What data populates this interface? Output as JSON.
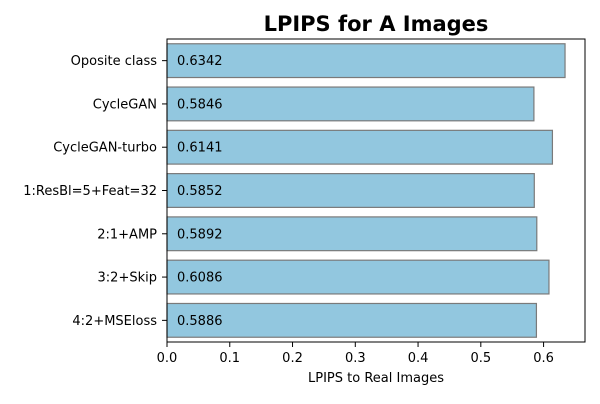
{
  "chart_data": {
    "type": "bar",
    "orientation": "horizontal",
    "title": "LPIPS for A Images",
    "xlabel": "LPIPS to Real Images",
    "ylabel": "",
    "categories": [
      "Oposite class",
      "CycleGAN",
      "CycleGAN-turbo",
      "1:ResBl=5+Feat=32",
      "2:1+AMP",
      "3:2+Skip",
      "4:2+MSEloss"
    ],
    "values": [
      0.6342,
      0.5846,
      0.6141,
      0.5852,
      0.5892,
      0.6086,
      0.5886
    ],
    "data_labels": [
      "0.6342",
      "0.5846",
      "0.6141",
      "0.5852",
      "0.5892",
      "0.6086",
      "0.5886"
    ],
    "xlim": [
      0,
      0.666
    ],
    "xticks": [
      0.0,
      0.1,
      0.2,
      0.3,
      0.4,
      0.5,
      0.6
    ],
    "xtick_labels": [
      "0.0",
      "0.1",
      "0.2",
      "0.3",
      "0.4",
      "0.5",
      "0.6"
    ],
    "grid": false,
    "legend": "none",
    "colors": {
      "bar_fill": "#92c7df",
      "bar_edge": "#7a7a7a"
    }
  }
}
